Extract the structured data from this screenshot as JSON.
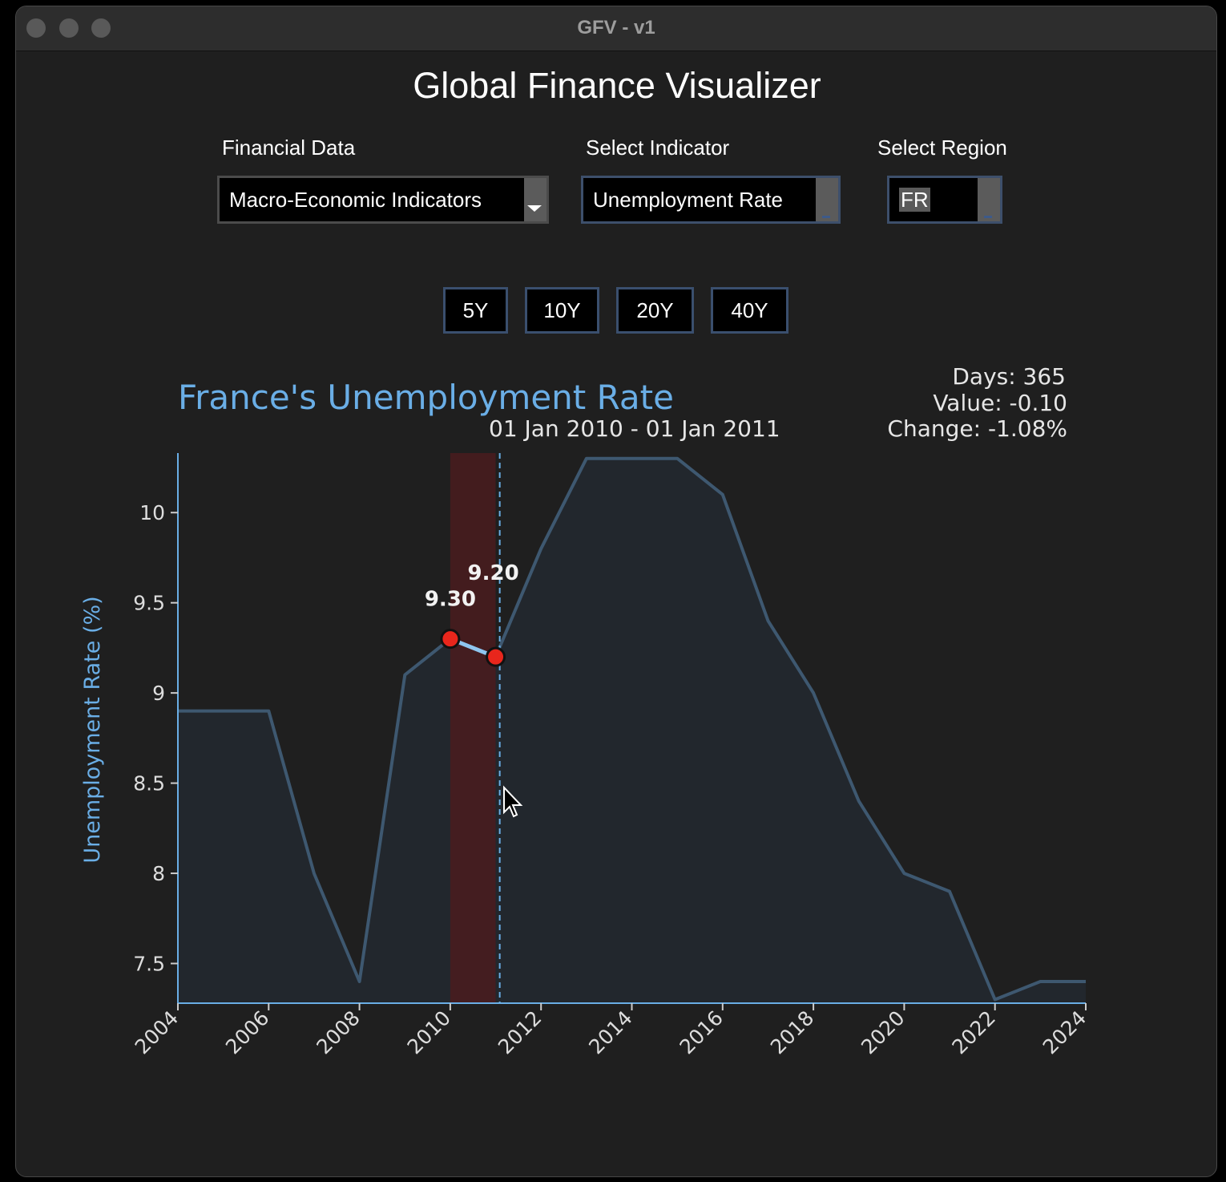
{
  "window": {
    "title": "GFV - v1"
  },
  "app": {
    "title": "Global Finance Visualizer"
  },
  "controls": {
    "financial_data": {
      "label": "Financial Data",
      "value": "Macro-Economic Indicators"
    },
    "indicator": {
      "label": "Select Indicator",
      "value": "Unemployment Rate"
    },
    "region": {
      "label": "Select Region",
      "value": "FR"
    }
  },
  "range_buttons": [
    "5Y",
    "10Y",
    "20Y",
    "40Y"
  ],
  "colors": {
    "accent": "#6aaee6",
    "line": "#3e5870",
    "fill": "#22272d",
    "highlight": "#4a1c1f",
    "point": "#e8261c"
  },
  "chart_data": {
    "type": "area",
    "title": "France's Unemployment Rate",
    "subtitle": "01 Jan 2010 - 01 Jan 2011",
    "info": {
      "days": "Days: 365",
      "value": "Value: -0.10",
      "change": "Change: -1.08%"
    },
    "xlabel": "",
    "ylabel": "Unemployment Rate (%)",
    "x": [
      2004,
      2005,
      2006,
      2007,
      2008,
      2009,
      2010,
      2011,
      2012,
      2013,
      2014,
      2015,
      2016,
      2017,
      2018,
      2019,
      2020,
      2021,
      2022,
      2023,
      2024
    ],
    "values": [
      8.9,
      8.9,
      8.9,
      8.0,
      7.4,
      9.1,
      9.3,
      9.2,
      9.8,
      10.3,
      10.3,
      10.3,
      10.1,
      9.4,
      9.0,
      8.4,
      8.0,
      7.9,
      7.3,
      7.4,
      7.4
    ],
    "xlim": [
      2004,
      2024
    ],
    "ylim": [
      7.28,
      10.33
    ],
    "xticks": [
      "2004",
      "2006",
      "2008",
      "2010",
      "2012",
      "2014",
      "2016",
      "2018",
      "2020",
      "2022",
      "2024"
    ],
    "yticks": [
      "7.5",
      "8",
      "8.5",
      "9",
      "9.5",
      "10"
    ],
    "selection": {
      "start": 2010,
      "end": 2011,
      "cursor": 2011.09,
      "points": [
        {
          "x": 2010,
          "y": 9.3,
          "label": "9.30"
        },
        {
          "x": 2011,
          "y": 9.2,
          "label": "9.20"
        }
      ]
    },
    "grid": false
  }
}
